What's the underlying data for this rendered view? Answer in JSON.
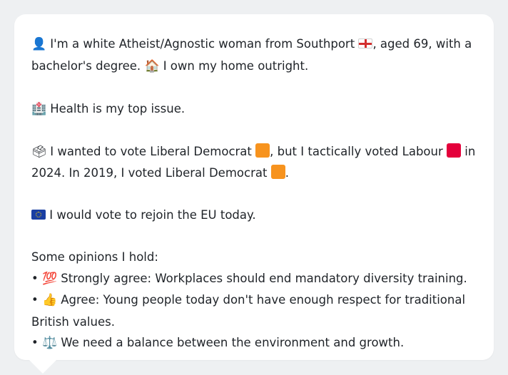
{
  "colors": {
    "lib_dem": "#f7931e",
    "labour": "#e4003b",
    "background": "#eef0f2",
    "bubble": "#ffffff",
    "text": "#1f2328"
  },
  "icons": {
    "person": "person-silhouette-icon",
    "england_flag": "england-flag-icon",
    "house": "house-icon",
    "hospital": "hospital-icon",
    "ballot": "ballot-box-icon",
    "lib_dem_square": "orange-square-icon",
    "labour_square": "red-square-icon",
    "eu_flag": "eu-flag-icon",
    "hundred": "hundred-points-icon",
    "thumbs_up": "thumbs-up-icon",
    "scales": "balance-scale-icon"
  },
  "profile": {
    "line1a": "I'm a white Atheist/Agnostic woman from Southport",
    "line1b": ", aged 69, with a",
    "line1c": "bachelor's degree.",
    "line1d": "I own my home outright.",
    "health": "Health is my top issue.",
    "vote_a": "I wanted to vote Liberal Democrat",
    "vote_b": ", but I tactically voted Labour",
    "vote_c": "in",
    "vote_d": "2024. In 2019, I voted Liberal Democrat",
    "vote_e": ".",
    "eu": "I would vote to rejoin the EU today.",
    "opinions_header": "Some opinions I hold:",
    "bullet": "•",
    "op1": "Strongly agree: Workplaces should end mandatory diversity training.",
    "op2a": "Agree: Young people today don't have enough respect for traditional",
    "op2b": "British values.",
    "op3": "We need a balance between the environment and growth."
  }
}
